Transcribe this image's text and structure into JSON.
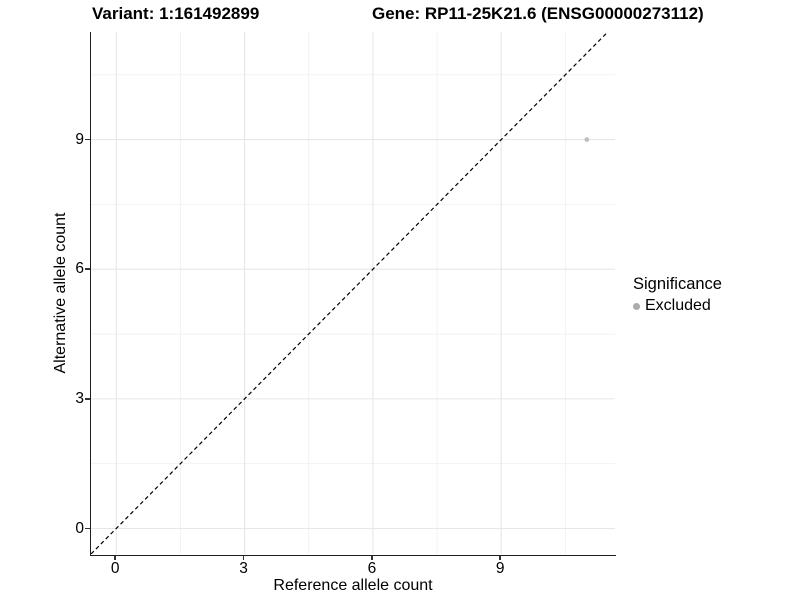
{
  "chart_data": {
    "type": "scatter",
    "variant_title": "Variant: 1:161492899",
    "gene_title": "Gene: RP11-25K21.6 (ENSG00000273112)",
    "xlabel": "Reference allele count",
    "ylabel": "Alternative allele count",
    "x_ticks": [
      0,
      3,
      6,
      9
    ],
    "y_ticks": [
      0,
      3,
      6,
      9
    ],
    "x_minor_ticks": [
      1.5,
      4.5,
      7.5,
      10.5
    ],
    "y_minor_ticks": [
      1.5,
      4.5,
      7.5,
      10.5
    ],
    "xlim": [
      -0.59,
      11.66
    ],
    "ylim": [
      -0.59,
      11.49
    ],
    "grid": true,
    "identity_line": {
      "slope": 1,
      "intercept": 0,
      "linetype": "dashed",
      "color": "#000000"
    },
    "series": [
      {
        "name": "Excluded",
        "color": "#bdbdbd",
        "points": [
          {
            "x": 11,
            "y": 9
          }
        ]
      }
    ],
    "legend": {
      "title": "Significance",
      "position": "right",
      "items": [
        {
          "label": "Excluded",
          "color": "#ababab",
          "marker": "circle"
        }
      ]
    },
    "colors": {
      "background": "#ffffff",
      "grid_major": "#e7e7e7",
      "grid_minor": "#f2f2f2",
      "axis_line": "#1f1f1f",
      "tick_mark": "#333333",
      "point": "#bdbdbd",
      "reference_line": "#000000"
    }
  }
}
